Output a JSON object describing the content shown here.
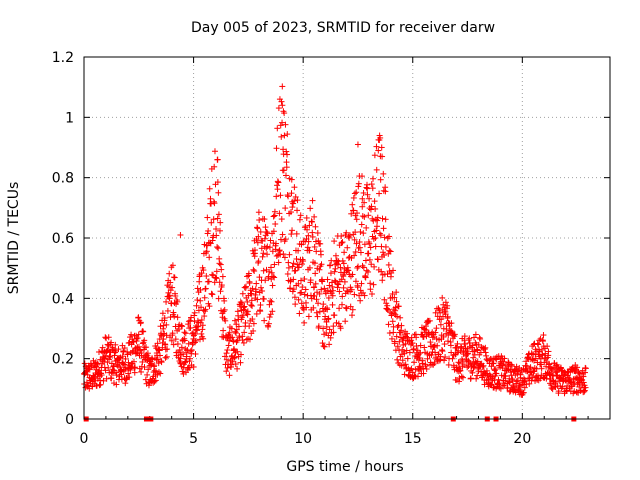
{
  "chart_data": {
    "type": "scatter",
    "title": "Day 005 of 2023, SRMTID for receiver darw",
    "xlabel": "GPS time / hours",
    "ylabel": "SRMTID / TECUs",
    "xlim": [
      0,
      24
    ],
    "ylim": [
      0,
      1.2
    ],
    "xticks": [
      0,
      5,
      10,
      15,
      20
    ],
    "yticks": [
      0,
      0.2,
      0.4,
      0.6,
      0.8,
      1,
      1.2
    ],
    "xtick_labels": [
      "0",
      "5",
      "10",
      "15",
      "20"
    ],
    "ytick_labels": [
      "0",
      "0.2",
      "0.4",
      "0.6",
      "0.8",
      "1",
      "1.2"
    ],
    "grid": true,
    "marker": "+",
    "color": "#ff0000",
    "envelope": [
      [
        0.0,
        0.13
      ],
      [
        0.5,
        0.14
      ],
      [
        1.0,
        0.2
      ],
      [
        1.5,
        0.17
      ],
      [
        2.0,
        0.18
      ],
      [
        2.5,
        0.25
      ],
      [
        3.0,
        0.14
      ],
      [
        3.5,
        0.22
      ],
      [
        4.0,
        0.38
      ],
      [
        4.5,
        0.22
      ],
      [
        5.0,
        0.25
      ],
      [
        5.5,
        0.42
      ],
      [
        6.0,
        0.7
      ],
      [
        6.5,
        0.2
      ],
      [
        7.0,
        0.25
      ],
      [
        7.5,
        0.35
      ],
      [
        8.0,
        0.5
      ],
      [
        8.5,
        0.45
      ],
      [
        9.0,
        0.85
      ],
      [
        9.5,
        0.6
      ],
      [
        10.0,
        0.45
      ],
      [
        10.5,
        0.55
      ],
      [
        11.0,
        0.3
      ],
      [
        11.5,
        0.45
      ],
      [
        12.0,
        0.45
      ],
      [
        12.5,
        0.6
      ],
      [
        13.0,
        0.55
      ],
      [
        13.5,
        0.7
      ],
      [
        14.0,
        0.4
      ],
      [
        14.5,
        0.22
      ],
      [
        15.0,
        0.2
      ],
      [
        15.5,
        0.22
      ],
      [
        16.0,
        0.25
      ],
      [
        16.5,
        0.3
      ],
      [
        17.0,
        0.18
      ],
      [
        17.5,
        0.2
      ],
      [
        18.0,
        0.2
      ],
      [
        18.5,
        0.15
      ],
      [
        19.0,
        0.15
      ],
      [
        19.5,
        0.13
      ],
      [
        20.0,
        0.12
      ],
      [
        20.5,
        0.18
      ],
      [
        21.0,
        0.2
      ],
      [
        21.5,
        0.13
      ],
      [
        22.0,
        0.12
      ],
      [
        22.5,
        0.13
      ],
      [
        22.9,
        0.12
      ]
    ],
    "spikes": [
      [
        6.1,
        0.86
      ],
      [
        9.05,
        1.04
      ],
      [
        9.1,
        1.02
      ],
      [
        9.5,
        0.72
      ],
      [
        12.5,
        0.91
      ],
      [
        13.6,
        0.87
      ],
      [
        4.4,
        0.61
      ],
      [
        12.7,
        0.73
      ],
      [
        10.5,
        0.67
      ],
      [
        7.8,
        0.56
      ]
    ],
    "zero_points": [
      0.1,
      2.85,
      3.05,
      16.85,
      18.4,
      18.8,
      22.35
    ]
  }
}
